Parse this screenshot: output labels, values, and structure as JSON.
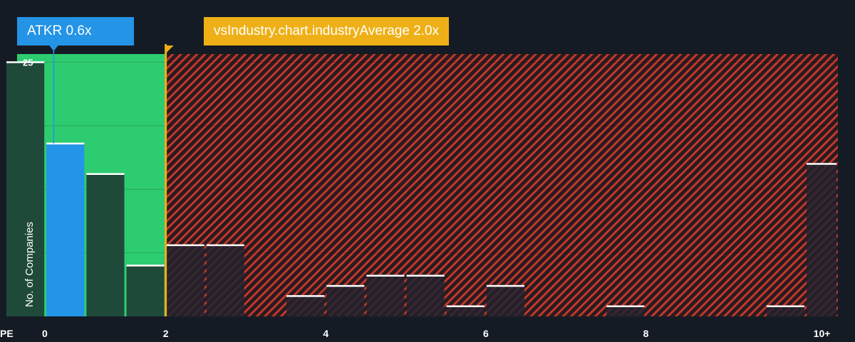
{
  "callouts": {
    "company": "ATKR 0.6x",
    "industry": "vsIndustry.chart.industryAverage 2.0x"
  },
  "colors": {
    "background": "#151b24",
    "green_zone": "#2ecc71",
    "red_zone": "#c0392b",
    "bar_default": "#1f4a3a",
    "bar_highlight": "#2394e6",
    "company_accent": "#2394e6",
    "industry_accent": "#eeb016"
  },
  "chart_data": {
    "type": "bar",
    "xlabel": "PE",
    "ylabel": "No. of Companies",
    "xlim": [
      0,
      10.4
    ],
    "ylim": [
      0,
      25.8
    ],
    "x_ticks": [
      {
        "value": 0,
        "label": "0"
      },
      {
        "value": 2,
        "label": "2"
      },
      {
        "value": 4,
        "label": "4"
      },
      {
        "value": 6,
        "label": "6"
      },
      {
        "value": 8,
        "label": "8"
      },
      {
        "value": 10.2,
        "label": "10+"
      }
    ],
    "y_ticks": [
      {
        "value": 25,
        "label": "25"
      }
    ],
    "gridlines_y": [
      6.25,
      12.5,
      18.75,
      25
    ],
    "bins": [
      {
        "start": 0,
        "end": 0.5,
        "count": 25
      },
      {
        "start": 0.5,
        "end": 1.0,
        "count": 17,
        "highlight": true
      },
      {
        "start": 1.0,
        "end": 1.5,
        "count": 14
      },
      {
        "start": 1.5,
        "end": 2.0,
        "count": 5
      },
      {
        "start": 2.0,
        "end": 2.5,
        "count": 7
      },
      {
        "start": 2.5,
        "end": 3.0,
        "count": 7
      },
      {
        "start": 3.5,
        "end": 4.0,
        "count": 2
      },
      {
        "start": 4.0,
        "end": 4.5,
        "count": 3
      },
      {
        "start": 4.5,
        "end": 5.0,
        "count": 4
      },
      {
        "start": 5.0,
        "end": 5.5,
        "count": 4
      },
      {
        "start": 5.5,
        "end": 6.0,
        "count": 1
      },
      {
        "start": 6.0,
        "end": 6.5,
        "count": 3
      },
      {
        "start": 7.5,
        "end": 8.0,
        "count": 1
      },
      {
        "start": 9.5,
        "end": 10.0,
        "count": 1
      },
      {
        "start": 10.0,
        "end": 10.4,
        "count": 15
      }
    ],
    "company_value": 0.6,
    "industry_average": 2.0,
    "fair_zone_end": 2.0
  }
}
